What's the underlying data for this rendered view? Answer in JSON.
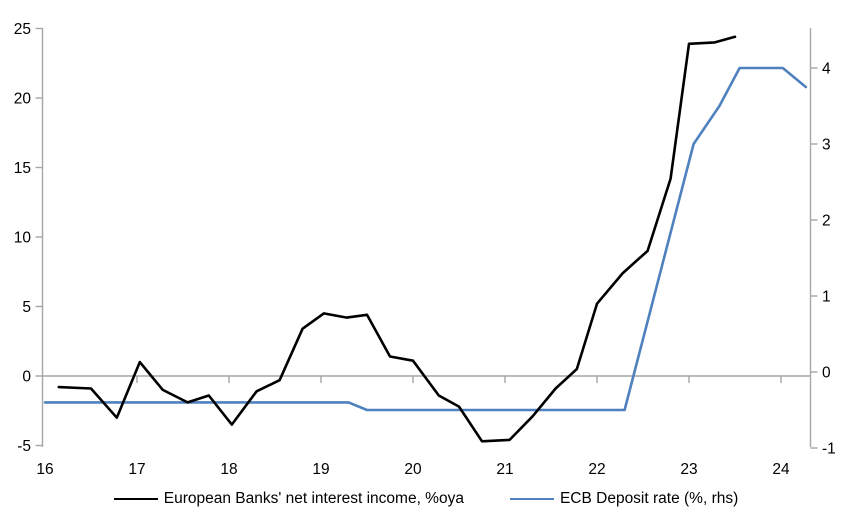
{
  "chart_data": {
    "type": "line",
    "title": "",
    "xlabel": "",
    "ylabel_left": "",
    "ylabel_right": "",
    "x_axis": {
      "ticks": [
        16,
        17,
        18,
        19,
        20,
        21,
        22,
        23,
        24
      ],
      "range": [
        16,
        24.35
      ]
    },
    "left_axis": {
      "ticks": [
        25,
        20,
        15,
        10,
        5,
        0,
        -5
      ],
      "range": [
        -5,
        25
      ]
    },
    "right_axis": {
      "ticks": [
        4,
        3,
        2,
        1,
        0,
        -1
      ],
      "range": [
        -1,
        4
      ]
    },
    "grid": false,
    "zero_line": true,
    "legend_position": "bottom-center",
    "series": [
      {
        "name": "European Banks' net interest income, %oya",
        "axis": "left",
        "color": "#000000",
        "points": [
          [
            16.15,
            -0.8
          ],
          [
            16.5,
            -0.9
          ],
          [
            16.78,
            -3.0
          ],
          [
            17.03,
            1.0
          ],
          [
            17.28,
            -1.0
          ],
          [
            17.55,
            -1.9
          ],
          [
            17.78,
            -1.4
          ],
          [
            18.03,
            -3.5
          ],
          [
            18.3,
            -1.1
          ],
          [
            18.55,
            -0.3
          ],
          [
            18.8,
            3.4
          ],
          [
            19.03,
            4.5
          ],
          [
            19.28,
            4.2
          ],
          [
            19.5,
            4.4
          ],
          [
            19.75,
            1.4
          ],
          [
            20.0,
            1.1
          ],
          [
            20.28,
            -1.4
          ],
          [
            20.5,
            -2.2
          ],
          [
            20.75,
            -4.7
          ],
          [
            21.05,
            -4.6
          ],
          [
            21.3,
            -2.9
          ],
          [
            21.55,
            -0.9
          ],
          [
            21.78,
            0.5
          ],
          [
            22.0,
            5.2
          ],
          [
            22.28,
            7.4
          ],
          [
            22.55,
            9.0
          ],
          [
            22.8,
            14.2
          ],
          [
            23.0,
            23.9
          ],
          [
            23.28,
            24.0
          ],
          [
            23.5,
            24.4
          ]
        ]
      },
      {
        "name": "ECB Deposit rate (%, rhs)",
        "axis": "right",
        "color": "#4e81bd",
        "points": [
          [
            16.0,
            -0.4
          ],
          [
            19.3,
            -0.4
          ],
          [
            19.5,
            -0.5
          ],
          [
            22.3,
            -0.5
          ],
          [
            23.05,
            3.0
          ],
          [
            23.33,
            3.5
          ],
          [
            23.55,
            4.0
          ],
          [
            24.02,
            4.0
          ],
          [
            24.27,
            3.75
          ]
        ]
      }
    ]
  },
  "colors": {
    "axis_gray": "#a6a6a6",
    "text": "#000000",
    "background": "#ffffff",
    "nii_line": "#000000",
    "ecb_line": "#4e81bd"
  }
}
